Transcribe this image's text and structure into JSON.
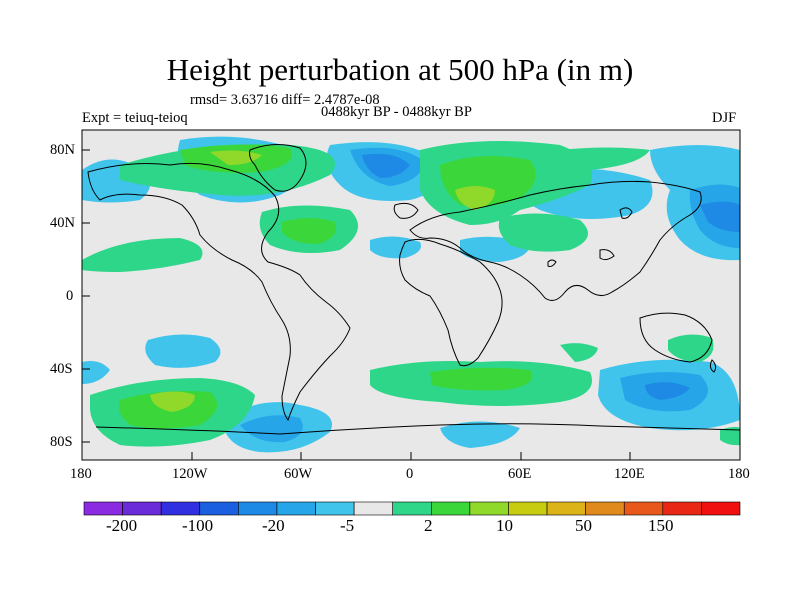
{
  "title": "Height perturbation at 500 hPa (in m)",
  "stats": "rmsd= 3.63716 diff= 2.4787e-08",
  "expt": "Expt = teiuq-teioq",
  "period": "0488kyr BP - 0488kyr BP",
  "season": "DJF",
  "lat_labels": [
    "80N",
    "40N",
    "0",
    "40S",
    "80S"
  ],
  "lon_labels": [
    "180",
    "120W",
    "60W",
    "0",
    "60E",
    "120E",
    "180"
  ],
  "colorbar": {
    "colors": [
      "#8a2be2",
      "#6a2bd8",
      "#3030e0",
      "#1a5fe0",
      "#1f8ae6",
      "#26a6e8",
      "#40c4ec",
      "#e8e8e8",
      "#2ed68a",
      "#3ad63a",
      "#90d82a",
      "#c8cc10",
      "#dcb41a",
      "#e08a1e",
      "#e8581a",
      "#e82814",
      "#f01010"
    ],
    "labels": [
      "-200",
      "-100",
      "-20",
      "-5",
      "2",
      "10",
      "50",
      "150"
    ]
  },
  "colors": {
    "background_field": "#e8e8e8",
    "coast": "#000000"
  }
}
